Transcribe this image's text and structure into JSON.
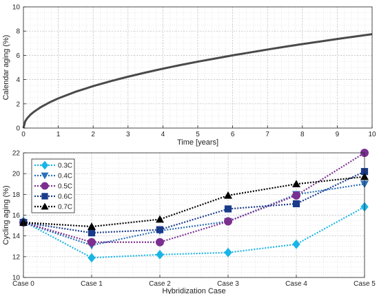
{
  "chart_data": [
    {
      "type": "line",
      "title": "",
      "xlabel": "Time [years]",
      "ylabel": "Calendar aging (%)",
      "xlim": [
        0,
        10
      ],
      "ylim": [
        0,
        10
      ],
      "xticks": [
        "0",
        "1",
        "2",
        "3",
        "4",
        "5",
        "6",
        "7",
        "8",
        "9",
        "10"
      ],
      "yticks": [
        "0",
        "2",
        "4",
        "6",
        "8",
        "10"
      ],
      "grid": true,
      "series": [
        {
          "color": "#4a4a4a",
          "x": [
            0,
            0.05,
            0.1,
            0.2,
            0.3,
            0.5,
            0.75,
            1,
            1.5,
            2,
            2.5,
            3,
            3.5,
            4,
            4.5,
            5,
            5.5,
            6,
            6.5,
            7,
            7.5,
            8,
            8.5,
            9,
            9.5,
            10
          ],
          "y": [
            0,
            0.55,
            0.78,
            1.1,
            1.34,
            1.73,
            2.12,
            2.45,
            3.0,
            3.46,
            3.87,
            4.24,
            4.58,
            4.9,
            5.2,
            5.48,
            5.74,
            6.0,
            6.24,
            6.48,
            6.71,
            6.93,
            7.14,
            7.35,
            7.55,
            7.75
          ]
        }
      ]
    },
    {
      "type": "line",
      "title": "",
      "xlabel": "Hybridization Case",
      "ylabel": "Cycling aging (%)",
      "categories": [
        "Case 0",
        "Case 1",
        "Case 2",
        "Case 3",
        "Case 4",
        "Case 5"
      ],
      "ylim": [
        10,
        22
      ],
      "yticks": [
        "10",
        "12",
        "14",
        "16",
        "18",
        "20",
        "22"
      ],
      "grid": true,
      "legend": "top-left",
      "series": [
        {
          "name": "0.3C",
          "color": "#19b4e6",
          "marker": "diamond",
          "values": [
            15.4,
            11.9,
            12.2,
            12.4,
            13.2,
            16.8
          ]
        },
        {
          "name": "0.4C",
          "color": "#2a6fb8",
          "marker": "triangle-down",
          "values": [
            15.3,
            13.1,
            14.5,
            15.4,
            18.0,
            19.0
          ]
        },
        {
          "name": "0.5C",
          "color": "#7b2f8f",
          "marker": "circle",
          "values": [
            15.3,
            13.4,
            13.4,
            15.4,
            17.9,
            22.0
          ]
        },
        {
          "name": "0.6C",
          "color": "#1a3a8a",
          "marker": "square",
          "values": [
            15.3,
            14.3,
            14.6,
            16.6,
            17.1,
            20.2
          ]
        },
        {
          "name": "0.7C",
          "color": "#000000",
          "marker": "triangle-up",
          "values": [
            15.3,
            14.9,
            15.6,
            17.9,
            19.0,
            19.7
          ]
        }
      ]
    }
  ]
}
